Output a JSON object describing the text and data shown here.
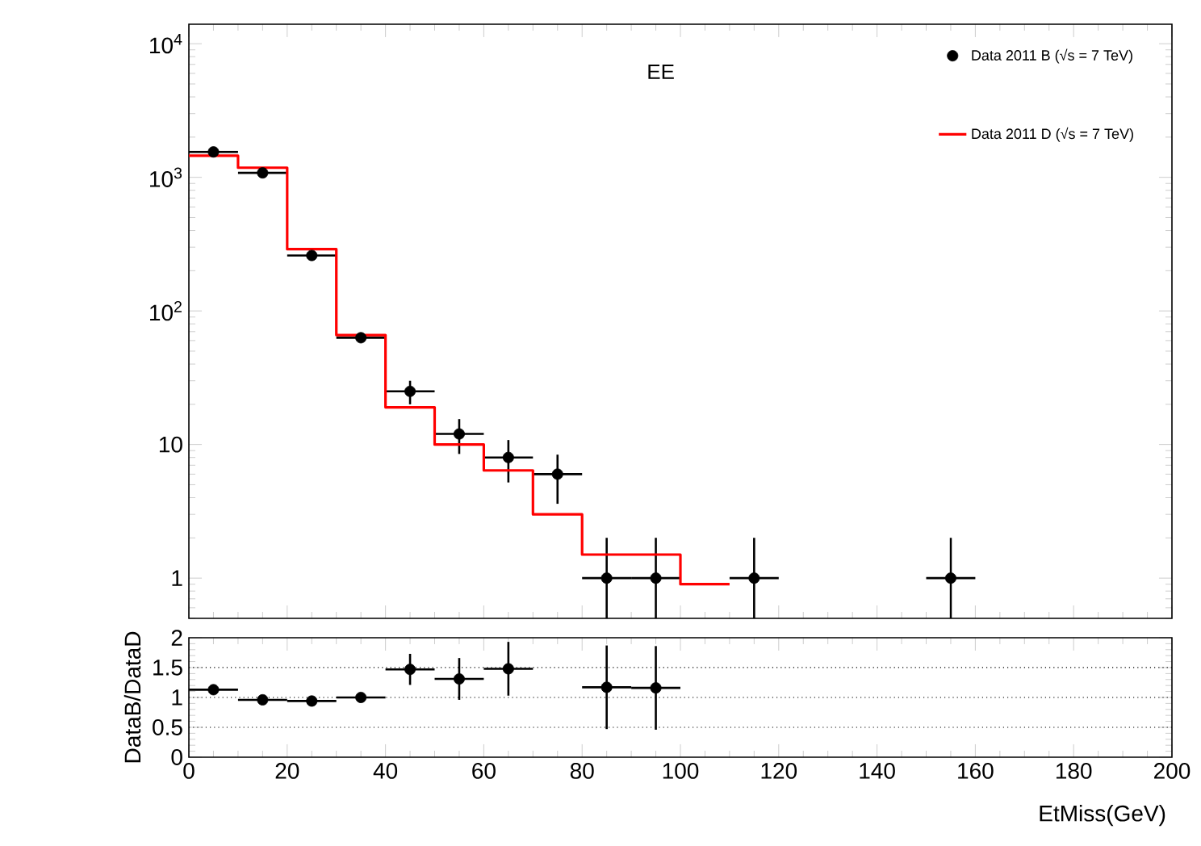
{
  "chart_data": [
    {
      "type": "scatter",
      "annotations": [
        "EE"
      ],
      "x": [
        5,
        15,
        25,
        35,
        45,
        55,
        65,
        75,
        85,
        95,
        105,
        115,
        125,
        135,
        145,
        155
      ],
      "series": [
        {
          "name": "Data 2011 B (√s = 7 TeV)",
          "color": "#000000",
          "values": [
            1550,
            1080,
            260,
            63,
            25,
            12,
            8,
            6,
            1,
            1,
            null,
            1,
            null,
            null,
            null,
            1
          ],
          "errors": [
            null,
            null,
            null,
            null,
            5,
            3.5,
            2.8,
            2.4,
            [
              0.5,
              2
            ],
            [
              0.5,
              2
            ],
            null,
            [
              0.5,
              2
            ],
            null,
            null,
            null,
            [
              0.5,
              2
            ]
          ],
          "xerrors": [
            5,
            5,
            5,
            5,
            5,
            5,
            5,
            5,
            5,
            5,
            null,
            5,
            null,
            null,
            null,
            5
          ]
        },
        {
          "name": "Data 2011 D (√s = 7 TeV)",
          "type": "histogram",
          "color": "#ff0000",
          "bins": [
            0,
            10,
            20,
            30,
            40,
            50,
            60,
            70,
            80,
            90,
            100,
            110
          ],
          "values": [
            1450,
            1180,
            290,
            66,
            19,
            10,
            6.4,
            3,
            1.5,
            1.5,
            0.9
          ]
        }
      ],
      "xlim": [
        0,
        200
      ],
      "xticks": [
        0,
        20,
        40,
        60,
        80,
        100,
        120,
        140,
        160,
        180,
        200
      ],
      "ylim": [
        0.5,
        14000
      ],
      "yticks": [
        {
          "value": 1,
          "label": "1"
        },
        {
          "value": 10,
          "label": "10"
        },
        {
          "value": 100,
          "label": "10$^{2}$"
        },
        {
          "value": 1000,
          "label": "10$^{3}$"
        },
        {
          "value": 10000,
          "label": "10$^{4}$"
        }
      ],
      "log": "y",
      "legend": "top right",
      "marker": "circle",
      "tick_labels": "y"
    },
    {
      "type": "scatter",
      "x": [
        5,
        15,
        25,
        35,
        45,
        55,
        65,
        85,
        95
      ],
      "values": [
        1.13,
        0.96,
        0.94,
        1.0,
        1.47,
        1.31,
        1.48,
        1.17,
        1.16
      ],
      "errors": [
        null,
        null,
        null,
        null,
        0.26,
        0.35,
        0.45,
        0.7,
        0.7
      ],
      "xerrors": [
        5,
        5,
        5,
        5,
        5,
        5,
        5,
        5,
        5
      ],
      "color": "#000000",
      "xlabel": "EtMiss(GeV)",
      "ylabel": "DataB/DataD",
      "xlim": [
        0,
        200
      ],
      "ylim": [
        0,
        2
      ],
      "xticks": [
        0,
        20,
        40,
        60,
        80,
        100,
        120,
        140,
        160,
        180,
        200
      ],
      "yticks": [
        0,
        0.5,
        1,
        1.5,
        2
      ],
      "ref_lines": [
        {
          "axis": "y",
          "value": 0.5,
          "line_style": "dotted"
        },
        {
          "axis": "y",
          "value": 1,
          "line_style": "dotted"
        },
        {
          "axis": "y",
          "value": 1.5,
          "line_style": "dotted"
        }
      ],
      "marker": "circle"
    }
  ]
}
